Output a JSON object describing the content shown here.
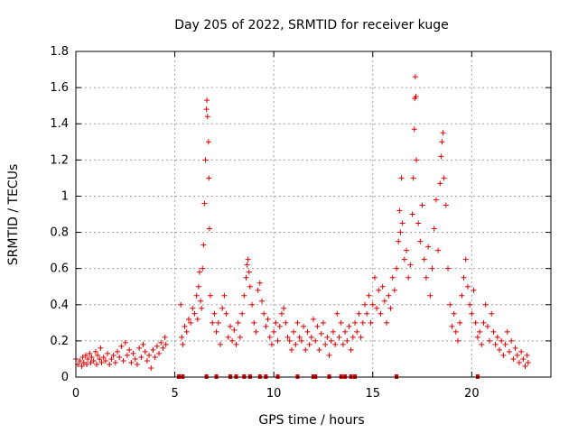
{
  "chart_data": {
    "type": "scatter",
    "title": "Day 205 of 2022, SRMTID for receiver kuge",
    "xlabel": "GPS time / hours",
    "ylabel": "SRMTID / TECUs",
    "xlim": [
      0,
      24
    ],
    "ylim": [
      0,
      1.8
    ],
    "xticks": [
      0,
      5,
      10,
      15,
      20
    ],
    "yticks": [
      0,
      0.2,
      0.4,
      0.6,
      0.8,
      1.0,
      1.2,
      1.4,
      1.6,
      1.8
    ],
    "xtick_labels": [
      "0",
      "5",
      "10",
      "15",
      "20"
    ],
    "ytick_labels": [
      "0",
      "0.2",
      "0.4",
      "0.6",
      "0.8",
      "1",
      "1.2",
      "1.4",
      "1.6",
      "1.8"
    ],
    "grid": true,
    "marker": "+",
    "color": "#e00000",
    "series": [
      {
        "name": "SRMTID",
        "points": [
          [
            0.0,
            0.1
          ],
          [
            0.1,
            0.07
          ],
          [
            0.2,
            0.09
          ],
          [
            0.3,
            0.06
          ],
          [
            0.35,
            0.11
          ],
          [
            0.4,
            0.08
          ],
          [
            0.5,
            0.12
          ],
          [
            0.55,
            0.07
          ],
          [
            0.6,
            0.1
          ],
          [
            0.7,
            0.13
          ],
          [
            0.75,
            0.08
          ],
          [
            0.8,
            0.11
          ],
          [
            0.9,
            0.09
          ],
          [
            1.0,
            0.14
          ],
          [
            1.05,
            0.07
          ],
          [
            1.1,
            0.12
          ],
          [
            1.2,
            0.1
          ],
          [
            1.25,
            0.16
          ],
          [
            1.3,
            0.08
          ],
          [
            1.4,
            0.11
          ],
          [
            1.5,
            0.09
          ],
          [
            1.6,
            0.13
          ],
          [
            1.7,
            0.07
          ],
          [
            1.8,
            0.1
          ],
          [
            1.9,
            0.12
          ],
          [
            2.0,
            0.08
          ],
          [
            2.1,
            0.14
          ],
          [
            2.2,
            0.11
          ],
          [
            2.3,
            0.17
          ],
          [
            2.4,
            0.09
          ],
          [
            2.5,
            0.19
          ],
          [
            2.6,
            0.12
          ],
          [
            2.7,
            0.15
          ],
          [
            2.8,
            0.08
          ],
          [
            2.9,
            0.13
          ],
          [
            3.0,
            0.1
          ],
          [
            3.1,
            0.07
          ],
          [
            3.2,
            0.16
          ],
          [
            3.3,
            0.11
          ],
          [
            3.4,
            0.18
          ],
          [
            3.5,
            0.14
          ],
          [
            3.6,
            0.09
          ],
          [
            3.7,
            0.12
          ],
          [
            3.8,
            0.05
          ],
          [
            3.9,
            0.15
          ],
          [
            4.0,
            0.11
          ],
          [
            4.1,
            0.17
          ],
          [
            4.2,
            0.13
          ],
          [
            4.3,
            0.19
          ],
          [
            4.4,
            0.16
          ],
          [
            4.5,
            0.22
          ],
          [
            4.55,
            0.18
          ],
          [
            5.3,
            0.4
          ],
          [
            5.35,
            0.22
          ],
          [
            5.4,
            0.18
          ],
          [
            5.5,
            0.28
          ],
          [
            5.6,
            0.25
          ],
          [
            5.7,
            0.32
          ],
          [
            5.8,
            0.3
          ],
          [
            5.9,
            0.38
          ],
          [
            6.0,
            0.35
          ],
          [
            6.1,
            0.45
          ],
          [
            6.15,
            0.32
          ],
          [
            6.2,
            0.5
          ],
          [
            6.25,
            0.58
          ],
          [
            6.3,
            0.42
          ],
          [
            6.35,
            0.38
          ],
          [
            6.4,
            0.6
          ],
          [
            6.45,
            0.73
          ],
          [
            6.5,
            0.96
          ],
          [
            6.55,
            1.2
          ],
          [
            6.6,
            1.48
          ],
          [
            6.62,
            1.53
          ],
          [
            6.65,
            1.44
          ],
          [
            6.7,
            1.3
          ],
          [
            6.72,
            1.1
          ],
          [
            6.75,
            0.82
          ],
          [
            6.8,
            0.45
          ],
          [
            6.9,
            0.3
          ],
          [
            7.0,
            0.35
          ],
          [
            7.1,
            0.25
          ],
          [
            7.2,
            0.3
          ],
          [
            7.3,
            0.18
          ],
          [
            7.4,
            0.38
          ],
          [
            7.5,
            0.45
          ],
          [
            7.6,
            0.35
          ],
          [
            7.7,
            0.22
          ],
          [
            7.8,
            0.28
          ],
          [
            7.9,
            0.2
          ],
          [
            8.0,
            0.26
          ],
          [
            8.1,
            0.18
          ],
          [
            8.2,
            0.3
          ],
          [
            8.3,
            0.22
          ],
          [
            8.4,
            0.35
          ],
          [
            8.5,
            0.45
          ],
          [
            8.6,
            0.55
          ],
          [
            8.65,
            0.62
          ],
          [
            8.7,
            0.65
          ],
          [
            8.75,
            0.58
          ],
          [
            8.8,
            0.5
          ],
          [
            8.9,
            0.4
          ],
          [
            9.0,
            0.3
          ],
          [
            9.1,
            0.25
          ],
          [
            9.2,
            0.48
          ],
          [
            9.3,
            0.52
          ],
          [
            9.4,
            0.42
          ],
          [
            9.5,
            0.35
          ],
          [
            9.6,
            0.28
          ],
          [
            9.7,
            0.32
          ],
          [
            9.8,
            0.22
          ],
          [
            9.9,
            0.18
          ],
          [
            10.0,
            0.25
          ],
          [
            10.1,
            0.3
          ],
          [
            10.2,
            0.2
          ],
          [
            10.3,
            0.28
          ],
          [
            10.4,
            0.35
          ],
          [
            10.5,
            0.38
          ],
          [
            10.6,
            0.3
          ],
          [
            10.7,
            0.22
          ],
          [
            10.8,
            0.2
          ],
          [
            10.9,
            0.15
          ],
          [
            11.0,
            0.25
          ],
          [
            11.1,
            0.18
          ],
          [
            11.2,
            0.3
          ],
          [
            11.3,
            0.22
          ],
          [
            11.4,
            0.2
          ],
          [
            11.5,
            0.28
          ],
          [
            11.6,
            0.15
          ],
          [
            11.7,
            0.25
          ],
          [
            11.8,
            0.18
          ],
          [
            11.9,
            0.22
          ],
          [
            12.0,
            0.32
          ],
          [
            12.1,
            0.2
          ],
          [
            12.2,
            0.28
          ],
          [
            12.3,
            0.15
          ],
          [
            12.4,
            0.24
          ],
          [
            12.5,
            0.3
          ],
          [
            12.6,
            0.18
          ],
          [
            12.7,
            0.22
          ],
          [
            12.8,
            0.12
          ],
          [
            12.9,
            0.2
          ],
          [
            13.0,
            0.25
          ],
          [
            13.1,
            0.18
          ],
          [
            13.2,
            0.35
          ],
          [
            13.3,
            0.22
          ],
          [
            13.4,
            0.3
          ],
          [
            13.5,
            0.18
          ],
          [
            13.6,
            0.25
          ],
          [
            13.7,
            0.2
          ],
          [
            13.8,
            0.28
          ],
          [
            13.9,
            0.15
          ],
          [
            14.0,
            0.22
          ],
          [
            14.1,
            0.3
          ],
          [
            14.2,
            0.25
          ],
          [
            14.3,
            0.35
          ],
          [
            14.4,
            0.22
          ],
          [
            14.5,
            0.3
          ],
          [
            14.6,
            0.4
          ],
          [
            14.7,
            0.35
          ],
          [
            14.8,
            0.45
          ],
          [
            14.9,
            0.3
          ],
          [
            15.0,
            0.4
          ],
          [
            15.1,
            0.55
          ],
          [
            15.2,
            0.38
          ],
          [
            15.3,
            0.48
          ],
          [
            15.4,
            0.35
          ],
          [
            15.5,
            0.5
          ],
          [
            15.6,
            0.42
          ],
          [
            15.7,
            0.3
          ],
          [
            15.8,
            0.45
          ],
          [
            15.9,
            0.38
          ],
          [
            16.0,
            0.55
          ],
          [
            16.1,
            0.48
          ],
          [
            16.2,
            0.6
          ],
          [
            16.3,
            0.75
          ],
          [
            16.35,
            0.92
          ],
          [
            16.4,
            0.8
          ],
          [
            16.45,
            1.1
          ],
          [
            16.5,
            0.85
          ],
          [
            16.6,
            0.65
          ],
          [
            16.7,
            0.7
          ],
          [
            16.8,
            0.55
          ],
          [
            16.9,
            0.62
          ],
          [
            17.0,
            0.9
          ],
          [
            17.05,
            1.1
          ],
          [
            17.1,
            1.37
          ],
          [
            17.12,
            1.54
          ],
          [
            17.15,
            1.66
          ],
          [
            17.18,
            1.55
          ],
          [
            17.2,
            1.2
          ],
          [
            17.3,
            0.85
          ],
          [
            17.4,
            0.75
          ],
          [
            17.5,
            0.95
          ],
          [
            17.6,
            0.65
          ],
          [
            17.7,
            0.55
          ],
          [
            17.8,
            0.72
          ],
          [
            17.9,
            0.45
          ],
          [
            18.0,
            0.6
          ],
          [
            18.1,
            0.82
          ],
          [
            18.2,
            0.98
          ],
          [
            18.3,
            0.7
          ],
          [
            18.4,
            1.07
          ],
          [
            18.45,
            1.22
          ],
          [
            18.5,
            1.3
          ],
          [
            18.55,
            1.35
          ],
          [
            18.6,
            1.1
          ],
          [
            18.7,
            0.95
          ],
          [
            18.8,
            0.6
          ],
          [
            18.9,
            0.4
          ],
          [
            19.0,
            0.28
          ],
          [
            19.1,
            0.35
          ],
          [
            19.2,
            0.25
          ],
          [
            19.3,
            0.2
          ],
          [
            19.4,
            0.3
          ],
          [
            19.5,
            0.45
          ],
          [
            19.6,
            0.55
          ],
          [
            19.7,
            0.65
          ],
          [
            19.8,
            0.5
          ],
          [
            19.9,
            0.4
          ],
          [
            20.0,
            0.35
          ],
          [
            20.1,
            0.48
          ],
          [
            20.2,
            0.3
          ],
          [
            20.3,
            0.22
          ],
          [
            20.4,
            0.25
          ],
          [
            20.5,
            0.18
          ],
          [
            20.6,
            0.3
          ],
          [
            20.7,
            0.4
          ],
          [
            20.8,
            0.28
          ],
          [
            20.9,
            0.2
          ],
          [
            21.0,
            0.35
          ],
          [
            21.1,
            0.25
          ],
          [
            21.2,
            0.18
          ],
          [
            21.3,
            0.22
          ],
          [
            21.4,
            0.15
          ],
          [
            21.5,
            0.2
          ],
          [
            21.6,
            0.12
          ],
          [
            21.7,
            0.18
          ],
          [
            21.8,
            0.25
          ],
          [
            21.9,
            0.14
          ],
          [
            22.0,
            0.2
          ],
          [
            22.1,
            0.1
          ],
          [
            22.2,
            0.16
          ],
          [
            22.3,
            0.12
          ],
          [
            22.4,
            0.08
          ],
          [
            22.5,
            0.14
          ],
          [
            22.6,
            0.1
          ],
          [
            22.7,
            0.06
          ],
          [
            22.8,
            0.12
          ],
          [
            22.85,
            0.08
          ],
          [
            5.2,
            0
          ],
          [
            5.4,
            0
          ],
          [
            6.6,
            0
          ],
          [
            7.1,
            0
          ],
          [
            7.8,
            0
          ],
          [
            8.1,
            0
          ],
          [
            8.5,
            0
          ],
          [
            8.8,
            0
          ],
          [
            9.3,
            0
          ],
          [
            9.6,
            0
          ],
          [
            10.2,
            0
          ],
          [
            11.2,
            0
          ],
          [
            12.0,
            0
          ],
          [
            12.1,
            0
          ],
          [
            12.8,
            0
          ],
          [
            13.4,
            0
          ],
          [
            13.6,
            0
          ],
          [
            13.9,
            0
          ],
          [
            14.1,
            0
          ],
          [
            16.2,
            0
          ],
          [
            20.3,
            0
          ]
        ]
      }
    ]
  }
}
